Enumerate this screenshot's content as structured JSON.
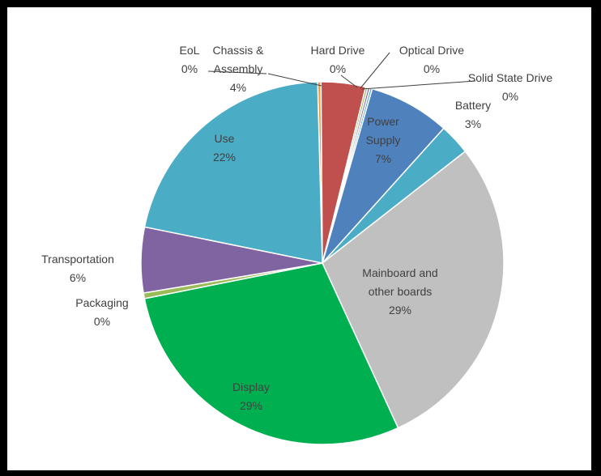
{
  "chart_data": {
    "type": "pie",
    "title": "",
    "start_angle_deg": -1.5,
    "direction": "clockwise",
    "slices": [
      {
        "name": "EoL",
        "label_lines": [
          "EoL"
        ],
        "pct_label": "0%",
        "value": 0.3,
        "color": "#f29b38"
      },
      {
        "name": "Chassis & Assembly",
        "label_lines": [
          "Chassis &",
          "Assembly"
        ],
        "pct_label": "4%",
        "value": 4.0,
        "color": "#c0504d"
      },
      {
        "name": "Hard Drive",
        "label_lines": [
          "Hard Drive"
        ],
        "pct_label": "0%",
        "value": 0.2,
        "color": "#9bbb59"
      },
      {
        "name": "Optical Drive",
        "label_lines": [
          "Optical Drive"
        ],
        "pct_label": "0%",
        "value": 0.2,
        "color": "#8064a2"
      },
      {
        "name": "Solid State Drive",
        "label_lines": [
          "Solid State Drive"
        ],
        "pct_label": "0%",
        "value": 0.2,
        "color": "#4bacc6"
      },
      {
        "name": "Power Supply",
        "label_lines": [
          "Power",
          "Supply"
        ],
        "pct_label": "7%",
        "value": 7.3,
        "color": "#4f81bd"
      },
      {
        "name": "Battery",
        "label_lines": [
          "Battery"
        ],
        "pct_label": "3%",
        "value": 2.8,
        "color": "#4bacc6"
      },
      {
        "name": "Mainboard and other boards",
        "label_lines": [
          "Mainboard and",
          "other boards"
        ],
        "pct_label": "29%",
        "value": 29.0,
        "color": "#c0c0c0"
      },
      {
        "name": "Display",
        "label_lines": [
          "Display"
        ],
        "pct_label": "29%",
        "value": 29.0,
        "color": "#00b050"
      },
      {
        "name": "Packaging",
        "label_lines": [
          "Packaging"
        ],
        "pct_label": "0%",
        "value": 0.5,
        "color": "#9bbb59"
      },
      {
        "name": "Transportation",
        "label_lines": [
          "Transportation"
        ],
        "pct_label": "6%",
        "value": 5.9,
        "color": "#8064a2"
      },
      {
        "name": "Use",
        "label_lines": [
          "Use"
        ],
        "pct_label": "22%",
        "value": 21.6,
        "color": "#4bacc6"
      }
    ]
  }
}
